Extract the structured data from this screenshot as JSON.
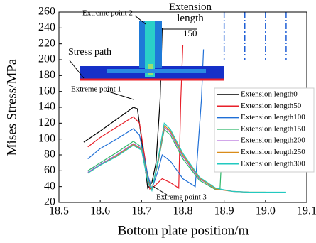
{
  "chart_data": {
    "type": "line",
    "xlabel": "Bottom plate position/m",
    "ylabel": "Mises Stress/MPa",
    "xlim": [
      18.5,
      19.1
    ],
    "ylim": [
      20,
      260
    ],
    "xticks": [
      18.5,
      18.6,
      18.7,
      18.8,
      18.9,
      {
        "value": 19,
        "label": "19.0"
      },
      19.1
    ],
    "yticks": [
      20,
      40,
      60,
      80,
      100,
      120,
      140,
      160,
      180,
      200,
      220,
      240,
      260
    ],
    "vlines": [
      18.9,
      18.95,
      19,
      19.05
    ],
    "vline_color": "#1f5fd6",
    "legend": "lower right",
    "annotations": [
      "Extreme point 1",
      "Extreme point 2",
      "Extreme point 3",
      "Stress path",
      "Extension length",
      "150"
    ],
    "series": [
      {
        "name": "Extension length0",
        "color": "#000000",
        "x": [
          18.56,
          18.6,
          18.64,
          18.68,
          18.69,
          18.7,
          18.715,
          18.725,
          18.735,
          18.745,
          18.75
        ],
        "values": [
          96,
          110,
          125,
          140,
          138,
          100,
          38,
          45,
          70,
          150,
          240
        ]
      },
      {
        "name": "Extension length50",
        "color": "#e8202a",
        "x": [
          18.57,
          18.6,
          18.64,
          18.68,
          18.695,
          18.71,
          18.72,
          18.73,
          18.75,
          18.77,
          18.79,
          18.795,
          18.8
        ],
        "values": [
          90,
          102,
          115,
          128,
          120,
          70,
          37,
          40,
          50,
          45,
          38,
          150,
          218
        ]
      },
      {
        "name": "Extension length100",
        "color": "#1f6fd6",
        "x": [
          18.57,
          18.6,
          18.64,
          18.68,
          18.695,
          18.715,
          18.725,
          18.74,
          18.75,
          18.77,
          18.8,
          18.83,
          18.845,
          18.85
        ],
        "values": [
          75,
          88,
          100,
          113,
          105,
          55,
          37,
          60,
          80,
          72,
          50,
          40,
          150,
          213
        ]
      },
      {
        "name": "Extension length150",
        "color": "#2fb86a",
        "x": [
          18.57,
          18.6,
          18.64,
          18.68,
          18.7,
          18.715,
          18.725,
          18.74,
          18.755,
          18.77,
          18.8,
          18.84,
          18.88,
          18.89,
          18.895
        ],
        "values": [
          60,
          70,
          83,
          97,
          90,
          50,
          36,
          70,
          112,
          105,
          75,
          48,
          36,
          38,
          88
        ]
      },
      {
        "name": "Extension length200",
        "color": "#a64fd6",
        "x": [
          18.57,
          18.6,
          18.64,
          18.68,
          18.7,
          18.715,
          18.725,
          18.74,
          18.755,
          18.77,
          18.8,
          18.84,
          18.88,
          18.92,
          18.96
        ],
        "values": [
          58,
          68,
          80,
          94,
          88,
          48,
          36,
          72,
          115,
          108,
          78,
          50,
          37,
          34,
          33
        ]
      },
      {
        "name": "Extension length250",
        "color": "#d98c1a",
        "x": [
          18.57,
          18.6,
          18.64,
          18.68,
          18.7,
          18.715,
          18.725,
          18.74,
          18.755,
          18.77,
          18.8,
          18.84,
          18.88,
          18.92,
          18.96,
          19
        ],
        "values": [
          57,
          67,
          79,
          93,
          87,
          47,
          36,
          73,
          117,
          110,
          80,
          51,
          37,
          34,
          33,
          33
        ]
      },
      {
        "name": "Extension length300",
        "color": "#22c9c0",
        "x": [
          18.57,
          18.6,
          18.64,
          18.68,
          18.7,
          18.715,
          18.725,
          18.74,
          18.755,
          18.77,
          18.8,
          18.84,
          18.88,
          18.92,
          18.96,
          19,
          19.05
        ],
        "values": [
          57,
          67,
          78,
          92,
          86,
          46,
          35,
          75,
          120,
          112,
          82,
          52,
          38,
          34,
          33,
          33,
          33
        ]
      }
    ]
  }
}
